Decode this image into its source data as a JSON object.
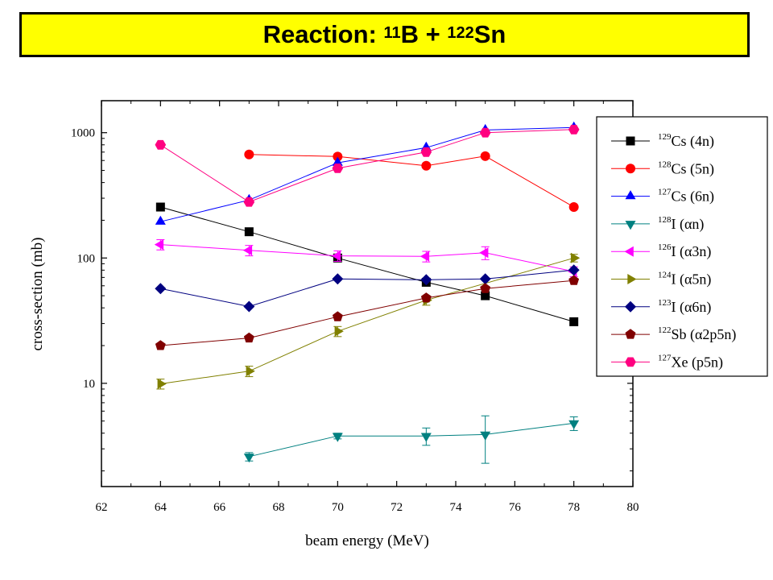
{
  "header": {
    "title_prefix": "Reaction: ",
    "title_sup1": "11",
    "title_mid": "B + ",
    "title_sup2": "122",
    "title_end": "Sn"
  },
  "chart_data": {
    "type": "line",
    "title": "Reaction: 11B + 122Sn",
    "xlabel": "beam energy (MeV)",
    "ylabel": "cross-section (mb)",
    "xlim": [
      62,
      80
    ],
    "ylim": [
      1.5,
      1800
    ],
    "y_scale": "log",
    "x_ticks": [
      62,
      64,
      66,
      68,
      70,
      72,
      74,
      76,
      78,
      80
    ],
    "y_ticks": [
      10,
      100,
      1000
    ],
    "y_tick_labels": [
      "10",
      "100",
      "1000"
    ],
    "legend_position": "top-right",
    "series": [
      {
        "name_sup": "129",
        "name_main": "Cs (4n)",
        "marker": "square",
        "color": "#000000",
        "x": [
          64,
          67,
          70,
          73,
          75,
          78
        ],
        "y": [
          255,
          162,
          100,
          64,
          50,
          31
        ]
      },
      {
        "name_sup": "128",
        "name_main": "Cs (5n)",
        "marker": "circle",
        "color": "#ff0000",
        "x": [
          67,
          70,
          73,
          75,
          78
        ],
        "y": [
          670,
          645,
          545,
          650,
          255
        ]
      },
      {
        "name_sup": "127",
        "name_main": "Cs (6n)",
        "marker": "triangle-up",
        "color": "#0000ff",
        "x": [
          64,
          67,
          70,
          73,
          75,
          78
        ],
        "y": [
          195,
          290,
          575,
          760,
          1050,
          1100
        ]
      },
      {
        "name_sup": "128",
        "name_main": "I (αn)",
        "marker": "triangle-down",
        "color": "#008080",
        "x": [
          67,
          70,
          73,
          75,
          78
        ],
        "y": [
          2.6,
          3.8,
          3.8,
          3.9,
          4.8
        ],
        "err": [
          0.2,
          0.2,
          0.6,
          1.6,
          0.6
        ]
      },
      {
        "name_sup": "126",
        "name_main": "I (α3n)",
        "marker": "triangle-left",
        "color": "#ff00ff",
        "x": [
          64,
          67,
          70,
          73,
          75,
          78
        ],
        "y": [
          128,
          115,
          104,
          103,
          110,
          78
        ],
        "err": [
          12,
          11,
          10,
          10,
          13,
          7
        ]
      },
      {
        "name_sup": "124",
        "name_main": "I (α5n)",
        "marker": "triangle-right",
        "color": "#808000",
        "x": [
          64,
          67,
          70,
          73,
          78
        ],
        "y": [
          9.9,
          12.5,
          26,
          46,
          100
        ],
        "err": [
          0.9,
          1.2,
          2.4,
          4,
          7
        ]
      },
      {
        "name_sup": "123",
        "name_main": "I (α6n)",
        "marker": "diamond",
        "color": "#000080",
        "x": [
          64,
          67,
          70,
          73,
          75,
          78
        ],
        "y": [
          57,
          41,
          68,
          67,
          68,
          80
        ]
      },
      {
        "name_sup": "122",
        "name_main": "Sb (α2p5n)",
        "marker": "pentagon",
        "color": "#800000",
        "x": [
          64,
          67,
          70,
          73,
          75,
          78
        ],
        "y": [
          20,
          23,
          34,
          48,
          57,
          66
        ]
      },
      {
        "name_sup": "127",
        "name_main": "Xe (p5n)",
        "marker": "hexagon",
        "color": "#ff0080",
        "x": [
          64,
          67,
          70,
          73,
          75,
          78
        ],
        "y": [
          800,
          280,
          520,
          700,
          1000,
          1060
        ]
      }
    ]
  }
}
